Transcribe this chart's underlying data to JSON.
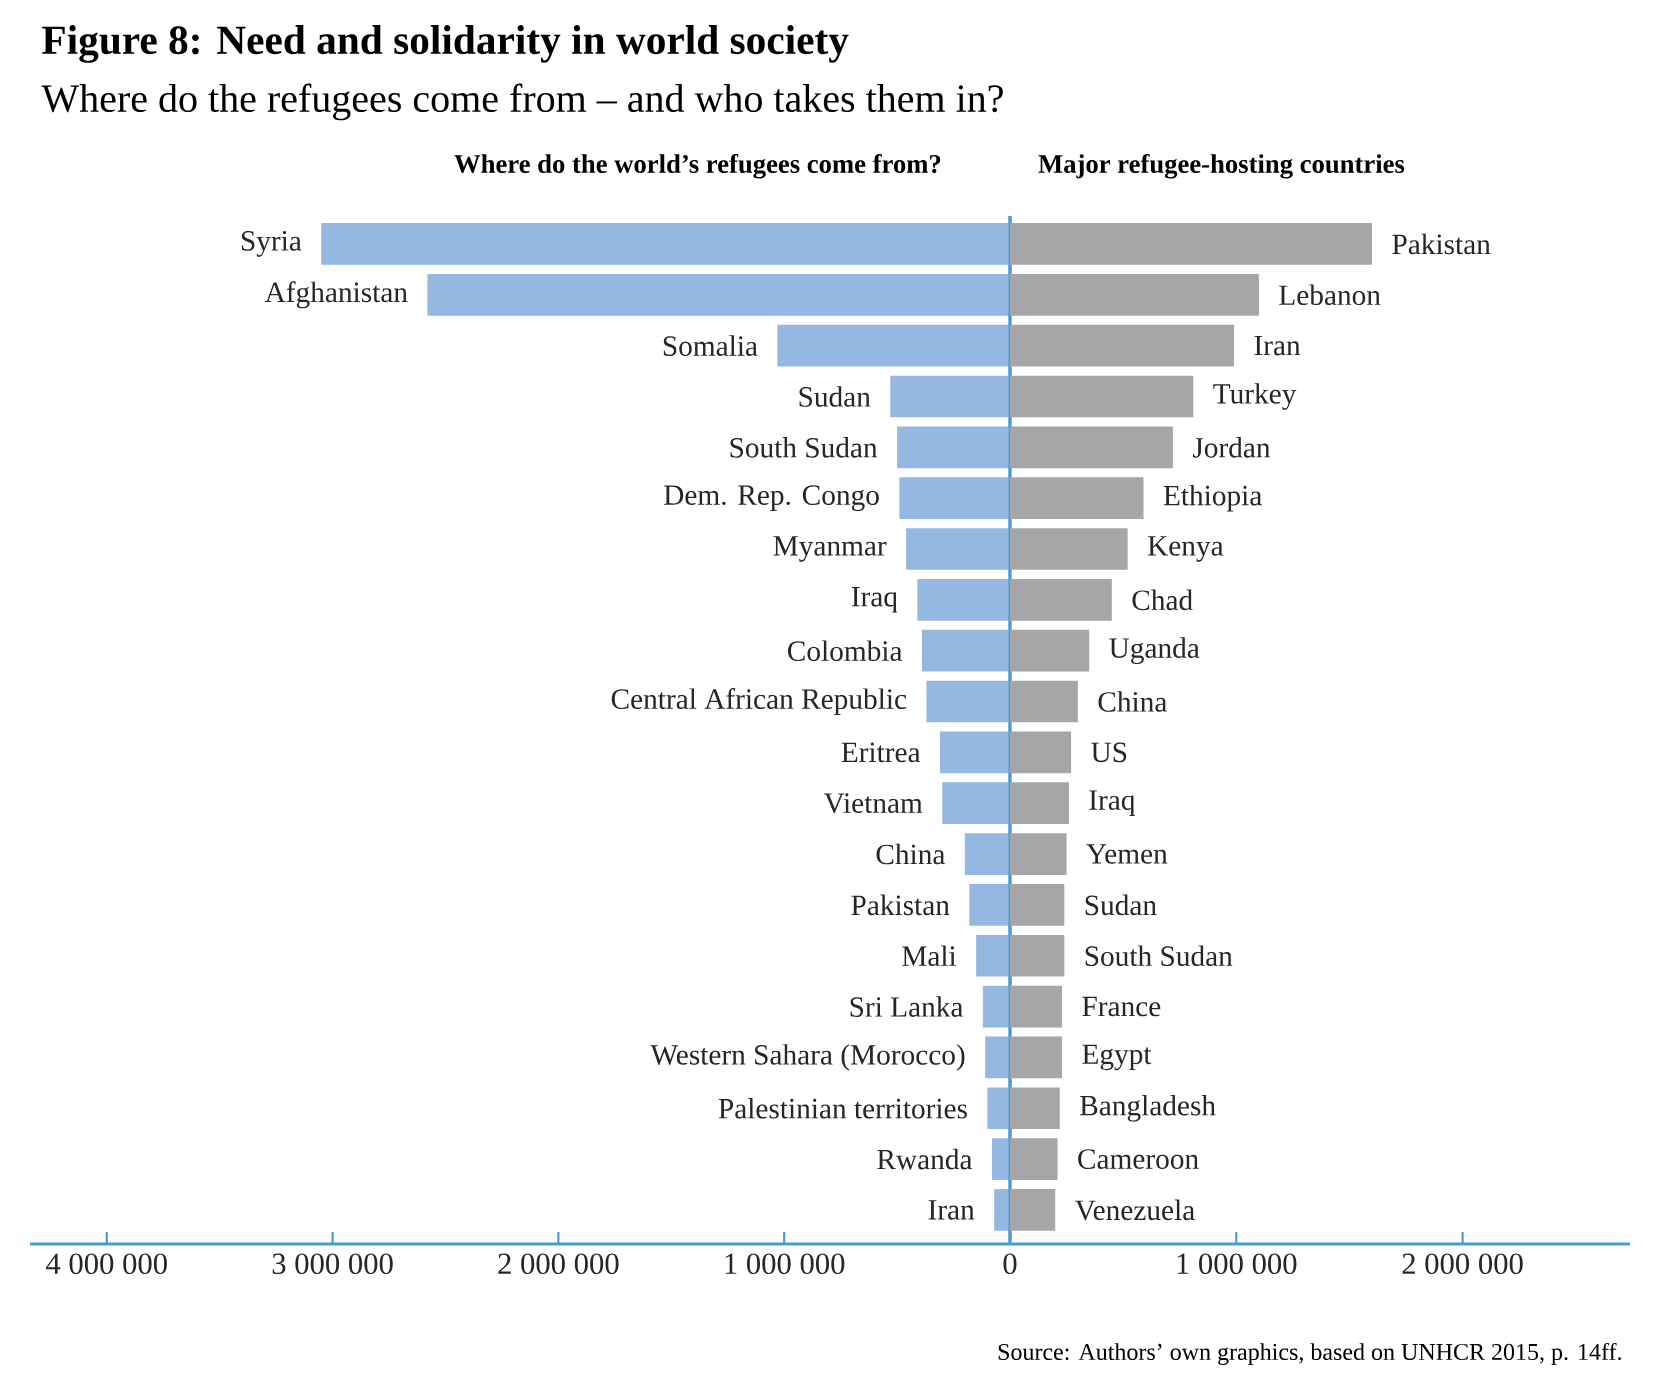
{
  "chart_data": [
    {
      "type": "other",
      "title": "Figure 8: Need and solidarity in world society",
      "subtitle": "Where do the refugees come from – and who takes them in?",
      "annotations": [
        "Source: Authors’ own graphics, based on UNHCR 2015, p. 14ff."
      ]
    },
    {
      "type": "bar",
      "orientation": "horizontal",
      "title": "Where do the world’s refugees come from?",
      "categories": [
        "Syria",
        "Afghanistan",
        "Somalia",
        "Sudan",
        "South Sudan",
        "Dem. Rep. Congo",
        "Myanmar",
        "Iraq",
        "Colombia",
        "Central African Republic",
        "Eritrea",
        "Vietnam",
        "China",
        "Pakistan",
        "Mali",
        "Sri Lanka",
        "Western Sahara (Morocco)",
        "Palestinian territories",
        "Rwanda",
        "Iran"
      ],
      "values": [
        3050000,
        2580000,
        1030000,
        530000,
        500000,
        490000,
        460000,
        410000,
        390000,
        370000,
        310000,
        300000,
        200000,
        180000,
        150000,
        120000,
        110000,
        100000,
        80000,
        70000
      ],
      "color": "#93b9e3",
      "xlim": [
        4340000,
        0
      ],
      "xticks": [
        {
          "value": 4000000,
          "label": "4 000 000"
        },
        {
          "value": 3000000,
          "label": "3 000 000"
        },
        {
          "value": 2000000,
          "label": "2 000 000"
        },
        {
          "value": 1000000,
          "label": "1 000 000"
        },
        0
      ]
    },
    {
      "type": "bar",
      "orientation": "horizontal",
      "title": "Major refugee-hosting countries",
      "categories": [
        "Pakistan",
        "Lebanon",
        "Iran",
        "Turkey",
        "Jordan",
        "Ethiopia",
        "Kenya",
        "Chad",
        "Uganda",
        "China",
        "US",
        "Iraq",
        "Yemen",
        "Sudan",
        "South Sudan",
        "France",
        "Egypt",
        "Bangladesh",
        "Cameroon",
        "Venezuela"
      ],
      "values": [
        1600000,
        1100000,
        990000,
        810000,
        720000,
        590000,
        520000,
        450000,
        350000,
        300000,
        270000,
        260000,
        250000,
        240000,
        240000,
        230000,
        230000,
        220000,
        210000,
        200000
      ],
      "color": "#a6a6a9",
      "xlim": [
        0,
        2740000
      ],
      "xticks": [
        {
          "value": 1000000,
          "label": "1 000 000"
        },
        {
          "value": 2000000,
          "label": "2 000 000"
        }
      ]
    }
  ]
}
